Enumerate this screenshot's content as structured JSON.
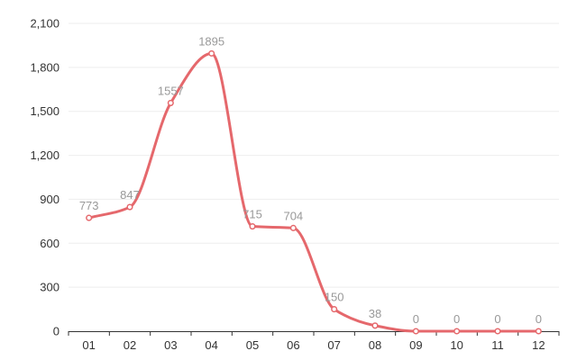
{
  "chart_data": {
    "type": "line",
    "title": "",
    "xlabel": "",
    "ylabel": "",
    "categories": [
      "01",
      "02",
      "03",
      "04",
      "05",
      "06",
      "07",
      "08",
      "09",
      "10",
      "11",
      "12"
    ],
    "series": [
      {
        "values": [
          773,
          847,
          1557,
          1895,
          715,
          704,
          150,
          38,
          0,
          0,
          0,
          0
        ],
        "color": "#e5686c"
      }
    ],
    "ylim": [
      0,
      2100
    ],
    "yticks": [
      0,
      300,
      600,
      900,
      1200,
      1500,
      1800,
      2100
    ],
    "ytick_labels": [
      "0",
      "300",
      "600",
      "900",
      "1,200",
      "1,500",
      "1,800",
      "2,100"
    ],
    "data_labels": [
      "773",
      "847",
      "1557",
      "1895",
      "715",
      "704",
      "150",
      "38",
      "0",
      "0",
      "0",
      "0"
    ],
    "grid": true,
    "smooth": true,
    "legend": "none"
  }
}
